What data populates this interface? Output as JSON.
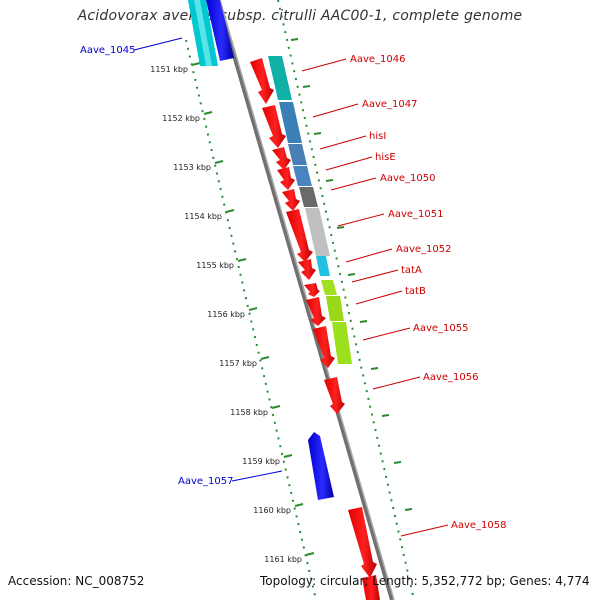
{
  "title": "Acidovorax avenae subsp. citrulli AAC00-1, complete genome",
  "accession": "Accession: NC_008752",
  "summary": "Topology: circular; Length: 5,352,772 bp; Genes: 4,774",
  "colors": {
    "forward_label": "#cc0000",
    "reverse_label": "#0000cc",
    "backbone": "#808080",
    "tick": "#2d8a2d",
    "forward_cds": "#ff0000",
    "reverse_cds": "#0000ff"
  },
  "scale": {
    "unit": "kbp",
    "ticks": [
      "1151 kbp",
      "1152 kbp",
      "1153 kbp",
      "1154 kbp",
      "1155 kbp",
      "1156 kbp",
      "1157 kbp",
      "1158 kbp",
      "1159 kbp",
      "1160 kbp",
      "1161 kbp"
    ]
  },
  "genes": [
    {
      "label": "Aave_1045",
      "strand": "reverse"
    },
    {
      "label": "Aave_1046",
      "strand": "forward"
    },
    {
      "label": "Aave_1047",
      "strand": "forward"
    },
    {
      "label": "hisI",
      "strand": "forward"
    },
    {
      "label": "hisE",
      "strand": "forward"
    },
    {
      "label": "Aave_1050",
      "strand": "forward"
    },
    {
      "label": "Aave_1051",
      "strand": "forward"
    },
    {
      "label": "Aave_1052",
      "strand": "forward"
    },
    {
      "label": "tatA",
      "strand": "forward"
    },
    {
      "label": "tatB",
      "strand": "forward"
    },
    {
      "label": "Aave_1055",
      "strand": "forward"
    },
    {
      "label": "Aave_1056",
      "strand": "forward"
    },
    {
      "label": "Aave_1057",
      "strand": "reverse"
    },
    {
      "label": "Aave_1058",
      "strand": "forward"
    }
  ]
}
